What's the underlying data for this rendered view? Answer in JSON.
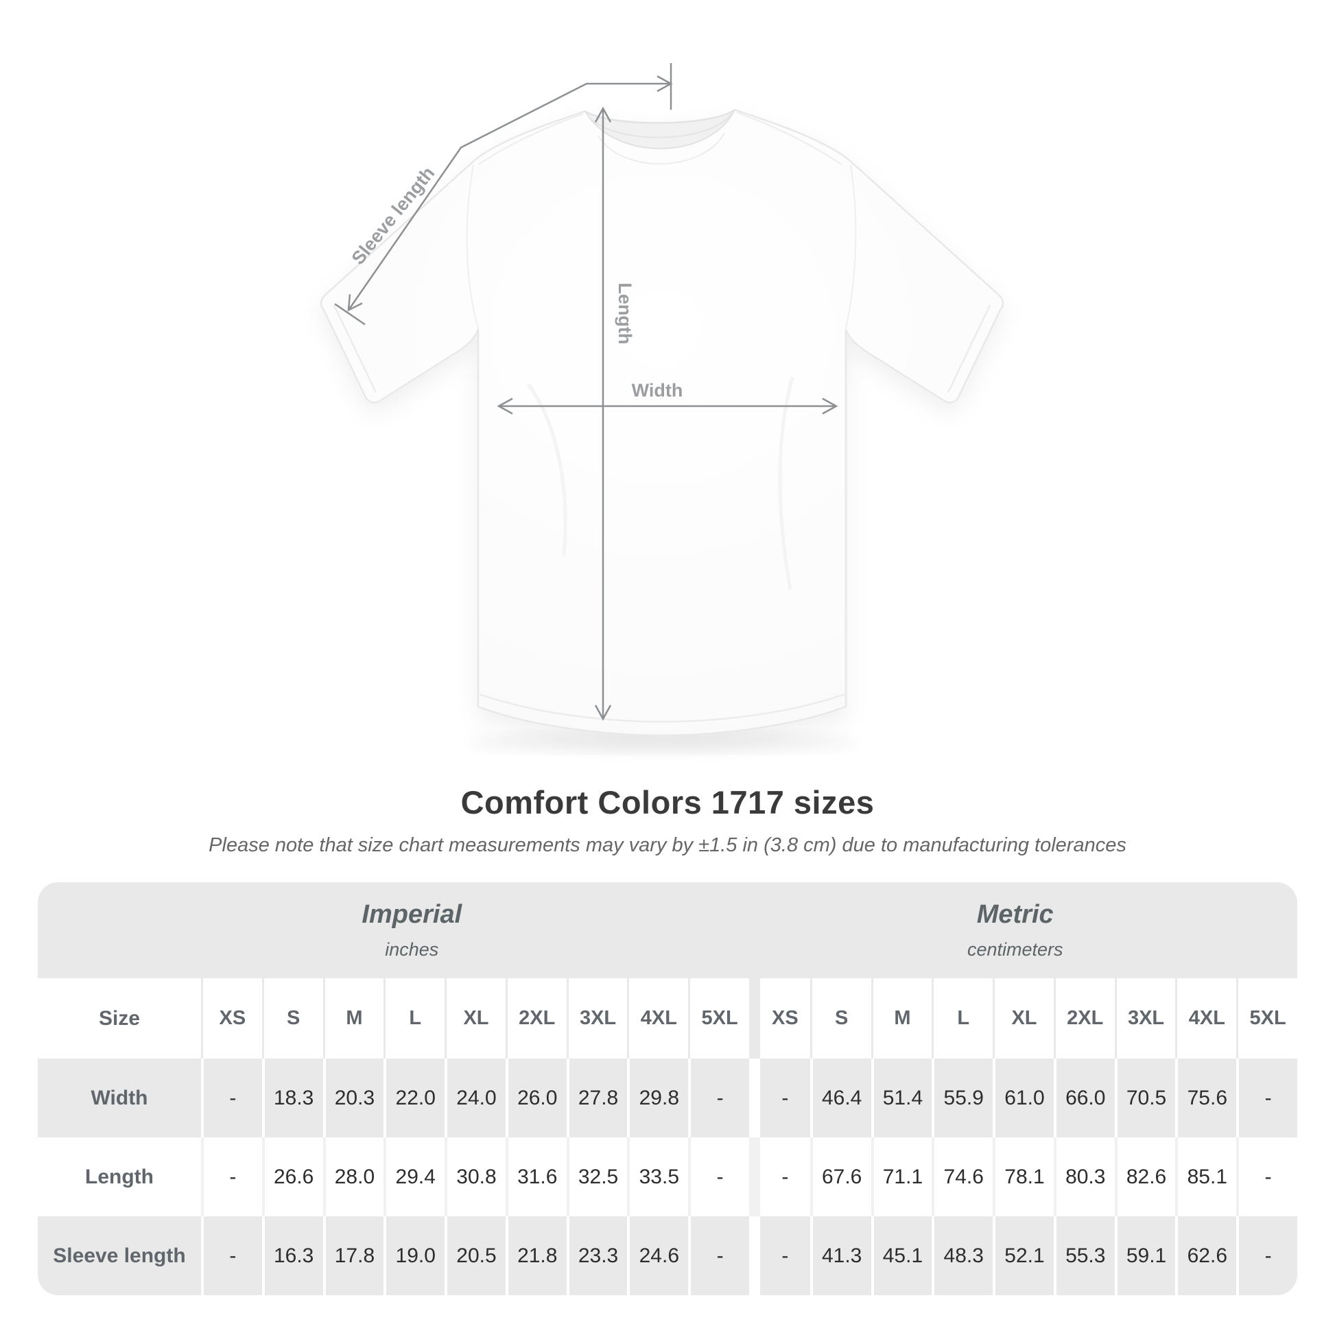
{
  "figure": {
    "labels": {
      "sleeve": "Sleeve length",
      "length": "Length",
      "width": "Width"
    },
    "line_color": "#8d9093",
    "label_color": "#9b9ea1"
  },
  "heading": {
    "title": "Comfort Colors 1717 sizes",
    "subtitle": "Please note that size chart measurements may vary by ±1.5 in (3.8 cm) due to manufacturing tolerances"
  },
  "table": {
    "corner_label": "Size",
    "groups": [
      {
        "name": "Imperial",
        "unit": "inches"
      },
      {
        "name": "Metric",
        "unit": "centimeters"
      }
    ],
    "sizes": [
      "XS",
      "S",
      "M",
      "L",
      "XL",
      "2XL",
      "3XL",
      "4XL",
      "5XL"
    ],
    "rows": [
      {
        "label": "Width",
        "imperial": [
          "-",
          "18.3",
          "20.3",
          "22.0",
          "24.0",
          "26.0",
          "27.8",
          "29.8",
          "-"
        ],
        "metric": [
          "-",
          "46.4",
          "51.4",
          "55.9",
          "61.0",
          "66.0",
          "70.5",
          "75.6",
          "-"
        ]
      },
      {
        "label": "Length",
        "imperial": [
          "-",
          "26.6",
          "28.0",
          "29.4",
          "30.8",
          "31.6",
          "32.5",
          "33.5",
          "-"
        ],
        "metric": [
          "-",
          "67.6",
          "71.1",
          "74.6",
          "78.1",
          "80.3",
          "82.6",
          "85.1",
          "-"
        ]
      },
      {
        "label": "Sleeve length",
        "imperial": [
          "-",
          "16.3",
          "17.8",
          "19.0",
          "20.5",
          "21.8",
          "23.3",
          "24.6",
          "-"
        ],
        "metric": [
          "-",
          "41.3",
          "45.1",
          "48.3",
          "52.1",
          "55.3",
          "59.1",
          "62.6",
          "-"
        ]
      }
    ],
    "colors": {
      "band_gray": "#e9e9e9",
      "value_text": "#2d2d2d",
      "header_text": "#60666b"
    }
  }
}
